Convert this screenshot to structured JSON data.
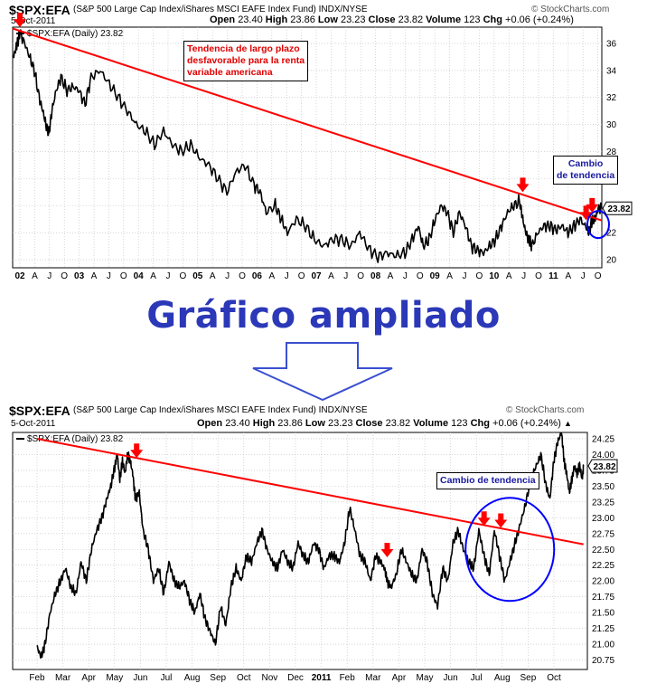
{
  "header": {
    "symbol": "$SPX:EFA",
    "description": "(S&P 500 Large Cap Index/iShares MSCI EAFE Index Fund) INDX/NYSE",
    "credit": "© StockCharts.com",
    "date_top": "5-Oct-2011",
    "date_bottom": "5-Oct-2011",
    "open_label": "Open",
    "open": "23.40",
    "high_label": "High",
    "high": "23.86",
    "low_label": "Low",
    "low": "23.23",
    "close_label": "Close",
    "close": "23.82",
    "volume_label": "Volume",
    "volume": "123",
    "chg_label": "Chg",
    "chg": "+0.06 (+0.24%)",
    "chg_arrow": "▲"
  },
  "middle_title": "Gráfico ampliado",
  "colors": {
    "price": "#000000",
    "trend": "#ff0000",
    "arrow": "#ff0000",
    "circle": "#0000ff",
    "title": "#2b38b8"
  },
  "chart_data": [
    {
      "type": "line",
      "legend_text": "$SPX:EFA (Daily) 23.82",
      "last_value_label": "23.82",
      "x_ticks": [
        "02",
        "A",
        "J",
        "O",
        "03",
        "A",
        "J",
        "O",
        "04",
        "A",
        "J",
        "O",
        "05",
        "A",
        "J",
        "O",
        "06",
        "A",
        "J",
        "O",
        "07",
        "A",
        "J",
        "O",
        "08",
        "A",
        "J",
        "O",
        "09",
        "A",
        "J",
        "O",
        "10",
        "A",
        "J",
        "O",
        "11",
        "A",
        "J",
        "O"
      ],
      "bold_x_ticks": [
        "02",
        "03",
        "04",
        "05",
        "06",
        "07",
        "08",
        "09",
        "10",
        "11"
      ],
      "y_ticks": [
        20,
        22,
        24,
        26,
        28,
        30,
        32,
        34,
        36
      ],
      "ylim": [
        19.4,
        37.2
      ],
      "series": [
        {
          "x": [
            2002.0,
            2002.04,
            2002.08,
            2002.12,
            2002.2,
            2002.28,
            2002.36,
            2002.44,
            2002.5,
            2002.55,
            2002.6,
            2002.65,
            2002.72,
            2002.8,
            2002.9,
            2003.0,
            2003.1,
            2003.2,
            2003.3,
            2003.45,
            2003.6,
            2003.75,
            2003.9,
            2004.05,
            2004.2,
            2004.35,
            2004.5,
            2004.65,
            2004.8,
            2004.95,
            2005.1,
            2005.25,
            2005.4,
            2005.55,
            2005.7,
            2005.85,
            2006.0,
            2006.1,
            2006.2,
            2006.35,
            2006.45,
            2006.55,
            2006.7,
            2006.85,
            2007.0,
            2007.15,
            2007.3,
            2007.45,
            2007.6,
            2007.75,
            2007.9,
            2008.05,
            2008.2,
            2008.35,
            2008.5,
            2008.62,
            2008.72,
            2008.8,
            2008.9,
            2009.0,
            2009.1,
            2009.2,
            2009.3,
            2009.4,
            2009.5,
            2009.6,
            2009.7,
            2009.8,
            2009.9,
            2010.0,
            2010.1,
            2010.2,
            2010.3,
            2010.4,
            2010.45,
            2010.5,
            2010.55,
            2010.6,
            2010.7,
            2010.8,
            2010.9,
            2011.0,
            2011.1,
            2011.2,
            2011.3,
            2011.4,
            2011.5,
            2011.55,
            2011.6,
            2011.65,
            2011.7,
            2011.76
          ],
          "y": [
            34.9,
            35.4,
            36.1,
            36.8,
            36.0,
            35.0,
            34.0,
            32.0,
            31.0,
            30.0,
            29.3,
            31.0,
            32.5,
            33.5,
            32.5,
            32.8,
            32.5,
            31.5,
            33.5,
            34.0,
            33.0,
            32.0,
            31.0,
            30.0,
            29.5,
            28.5,
            29.5,
            28.5,
            28.0,
            28.5,
            27.5,
            27.0,
            26.0,
            25.0,
            26.5,
            27.0,
            25.5,
            25.0,
            23.5,
            24.0,
            23.0,
            22.0,
            23.0,
            22.5,
            21.5,
            21.0,
            21.5,
            21.5,
            21.0,
            22.0,
            20.8,
            20.2,
            20.5,
            20.3,
            20.5,
            21.5,
            22.5,
            21.0,
            21.5,
            23.0,
            24.0,
            23.5,
            22.0,
            23.5,
            22.5,
            21.0,
            20.7,
            20.5,
            21.0,
            21.5,
            22.5,
            23.5,
            24.0,
            24.3,
            23.0,
            22.0,
            21.5,
            21.0,
            22.0,
            22.5,
            22.5,
            22.2,
            22.5,
            22.0,
            22.5,
            23.0,
            22.4,
            22.0,
            22.9,
            23.0,
            23.8,
            23.8
          ]
        }
      ],
      "trendline": {
        "x": [
          2002.0,
          2011.76
        ],
        "y": [
          37.1,
          22.9
        ]
      },
      "arrows_x": [
        2002.12,
        2010.45,
        2011.5,
        2011.6
      ],
      "circle_center": {
        "x": 2011.7,
        "y": 22.6
      }
    },
    {
      "type": "line",
      "legend_text": "$SPX:EFA (Daily) 23.82",
      "last_value_label": "23.82",
      "x_ticks": [
        "Feb",
        "Mar",
        "Apr",
        "May",
        "Jun",
        "Jul",
        "Aug",
        "Sep",
        "Oct",
        "Nov",
        "Dec",
        "2011",
        "Feb",
        "Mar",
        "Apr",
        "May",
        "Jun",
        "Jul",
        "Aug",
        "Sep",
        "Oct"
      ],
      "bold_x_ticks": [
        "2011"
      ],
      "y_ticks": [
        20.75,
        21.0,
        21.25,
        21.5,
        21.75,
        22.0,
        22.25,
        22.5,
        22.75,
        23.0,
        23.25,
        23.5,
        23.75,
        24.0,
        24.25
      ],
      "ylim": [
        20.6,
        24.35
      ],
      "series": [
        {
          "x": [
            0.0,
            0.15,
            0.3,
            0.5,
            0.7,
            0.9,
            1.1,
            1.3,
            1.5,
            1.7,
            1.9,
            2.1,
            2.3,
            2.5,
            2.7,
            2.85,
            3.0,
            3.1,
            3.2,
            3.3,
            3.4,
            3.5,
            3.6,
            3.7,
            3.8,
            3.95,
            4.1,
            4.3,
            4.5,
            4.7,
            4.9,
            5.1,
            5.3,
            5.5,
            5.7,
            5.9,
            6.1,
            6.3,
            6.5,
            6.7,
            6.9,
            7.1,
            7.3,
            7.5,
            7.7,
            7.9,
            8.1,
            8.3,
            8.5,
            8.7,
            8.9,
            9.1,
            9.3,
            9.5,
            9.7,
            9.9,
            10.1,
            10.3,
            10.5,
            10.7,
            10.9,
            11.1,
            11.3,
            11.5,
            11.7,
            11.9,
            12.1,
            12.3,
            12.5,
            12.7,
            12.9,
            13.1,
            13.3,
            13.45,
            13.55,
            13.7,
            13.9,
            14.1,
            14.3,
            14.5,
            14.7,
            14.9,
            15.1,
            15.3,
            15.5,
            15.7,
            15.9,
            16.1,
            16.3,
            16.5,
            16.7,
            16.9,
            17.1,
            17.3,
            17.5,
            17.7,
            17.9,
            18.1,
            18.3,
            18.5,
            18.7,
            18.9,
            19.1,
            19.3,
            19.5,
            19.7,
            19.85,
            20.0,
            20.15,
            20.3,
            20.4,
            20.5,
            20.6,
            20.7,
            20.8,
            20.9,
            21.0,
            21.1,
            21.15
          ],
          "y": [
            20.95,
            20.8,
            21.0,
            21.5,
            21.8,
            22.0,
            22.2,
            21.9,
            21.8,
            22.3,
            22.0,
            22.5,
            22.8,
            23.0,
            23.3,
            23.5,
            23.8,
            24.0,
            23.6,
            23.9,
            23.7,
            24.0,
            23.9,
            23.7,
            23.3,
            23.4,
            22.8,
            22.5,
            22.0,
            22.2,
            21.8,
            22.3,
            22.0,
            21.9,
            22.0,
            21.7,
            21.5,
            21.8,
            21.4,
            21.2,
            21.0,
            21.6,
            21.3,
            21.9,
            22.2,
            22.0,
            22.4,
            22.3,
            22.6,
            22.8,
            22.5,
            22.3,
            22.2,
            22.5,
            22.3,
            22.2,
            22.6,
            22.4,
            22.3,
            22.6,
            22.5,
            22.2,
            22.4,
            22.4,
            22.3,
            22.6,
            23.15,
            22.8,
            22.4,
            22.3,
            22.0,
            22.4,
            22.3,
            22.2,
            22.0,
            21.9,
            22.1,
            22.5,
            22.3,
            22.1,
            22.0,
            22.5,
            22.3,
            21.8,
            21.6,
            22.2,
            22.0,
            22.6,
            22.8,
            22.5,
            22.3,
            22.2,
            22.8,
            22.4,
            22.1,
            22.8,
            22.4,
            22.0,
            22.3,
            22.6,
            22.9,
            23.2,
            23.6,
            23.8,
            24.0,
            23.5,
            23.3,
            23.9,
            24.2,
            24.35,
            23.9,
            23.7,
            23.4,
            23.6,
            23.82,
            23.7,
            23.82,
            23.6,
            23.82
          ]
        }
      ],
      "trendline": {
        "x": [
          0.0,
          21.15
        ],
        "y": [
          24.25,
          22.58
        ]
      },
      "arrows_x": [
        3.85,
        13.55,
        17.3,
        17.95
      ],
      "circle_center": {
        "x": 18.3,
        "y": 22.5
      }
    }
  ],
  "annotations": {
    "top_red_note": "Tendencia de largo plazo\ndesfavorable para la renta\nvariable americana",
    "top_blue_note": "Cambio\nde tendencia",
    "bottom_blue_note": "Cambio de tendencia"
  }
}
